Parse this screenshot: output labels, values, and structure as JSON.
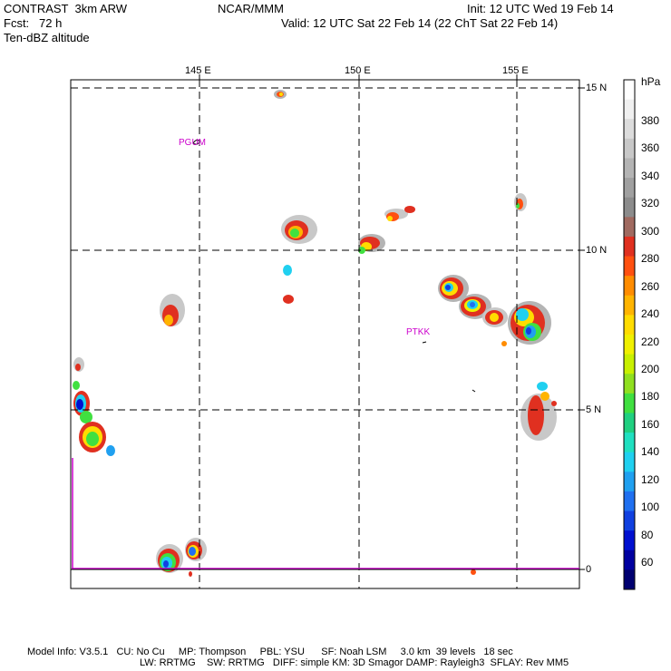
{
  "header": {
    "line1_left": "CONTRAST  3km ARW",
    "line1_center": "NCAR/MMM",
    "line1_right": "Init: 12 UTC Wed 19 Feb 14",
    "line2_left": "Fcst:   72 h",
    "line2_right": "Valid: 12 UTC Sat 22 Feb 14 (22 ChT Sat 22 Feb 14)",
    "line3_left": "Ten-dBZ altitude"
  },
  "map": {
    "lon_labels": [
      "145 E",
      "150 E",
      "155 E"
    ],
    "lat_labels": [
      "15 N",
      "10 N",
      "5 N",
      "0"
    ],
    "stations": [
      "PGUM",
      "PTKK"
    ]
  },
  "colorbar": {
    "unit": "hPa",
    "levels": [
      "380",
      "360",
      "340",
      "320",
      "300",
      "280",
      "260",
      "240",
      "220",
      "200",
      "180",
      "160",
      "140",
      "120",
      "100",
      "80",
      "60"
    ],
    "colors": [
      "#ffffff",
      "#f0f0f0",
      "#dcdcdc",
      "#c8c8c8",
      "#b4b4b4",
      "#a0a0a0",
      "#8c8c8c",
      "#a06a60",
      "#e03020",
      "#ff5010",
      "#ff8c00",
      "#ffb400",
      "#ffdc00",
      "#f0f000",
      "#c8f000",
      "#90e020",
      "#40e040",
      "#20d080",
      "#20e0c0",
      "#20d0f0",
      "#20a0f0",
      "#2070f0",
      "#1040e0",
      "#0010d0",
      "#0000a0",
      "#000070"
    ]
  },
  "footer": {
    "line1": "Model Info: V3.5.1   CU: No Cu     MP: Thompson     PBL: YSU      SF: Noah LSM     3.0 km  39 levels   18 sec",
    "line2": "LW: RRTMG    SW: RRTMG   DIFF: simple KM: 3D Smagor DAMP: Rayleigh3  SFLAY: Rev MM5"
  }
}
